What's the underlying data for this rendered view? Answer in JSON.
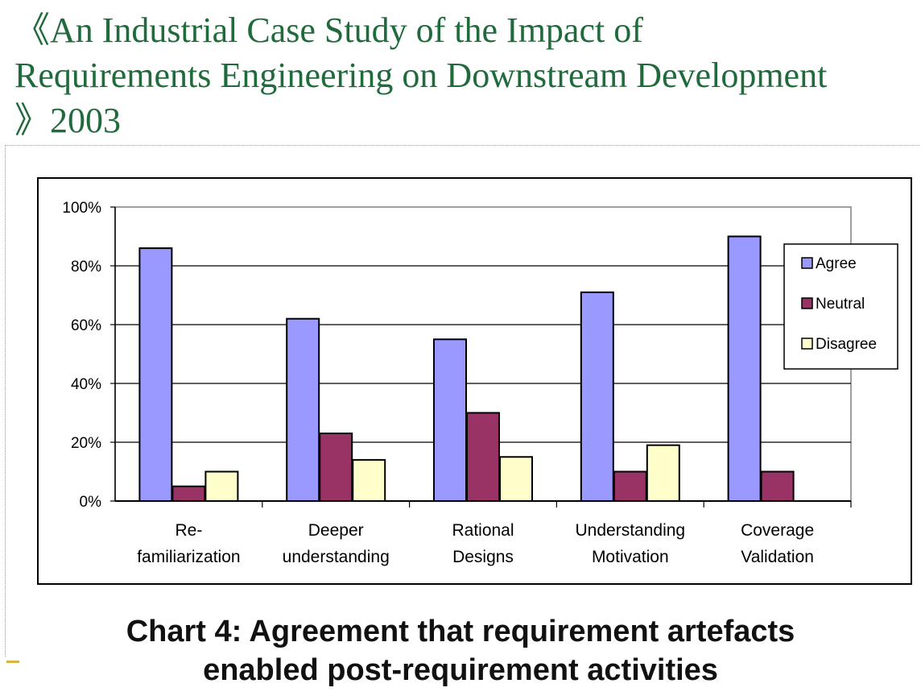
{
  "slide": {
    "title_lines": [
      "《An Industrial Case Study of the Impact of",
      "Requirements Engineering on Downstream Development",
      "》2003"
    ]
  },
  "chart_data": {
    "type": "bar",
    "title": "",
    "xlabel": "",
    "ylabel": "",
    "ylim": [
      0,
      100
    ],
    "y_ticks": [
      "0%",
      "20%",
      "40%",
      "60%",
      "80%",
      "100%"
    ],
    "grid": true,
    "legend_position": "right",
    "categories": [
      [
        "Re-",
        "familiarization"
      ],
      [
        "Deeper",
        "understanding"
      ],
      [
        "Rational",
        "Designs"
      ],
      [
        "Understanding",
        "Motivation"
      ],
      [
        "Coverage",
        "Validation"
      ]
    ],
    "series": [
      {
        "name": "Agree",
        "color": "#9999ff",
        "values": [
          86,
          62,
          55,
          71,
          90
        ]
      },
      {
        "name": "Neutral",
        "color": "#993366",
        "values": [
          5,
          23,
          30,
          10,
          10
        ]
      },
      {
        "name": "Disagree",
        "color": "#ffffcc",
        "values": [
          10,
          14,
          15,
          19,
          0
        ]
      }
    ]
  },
  "caption": {
    "lines": [
      "Chart 4: Agreement that requirement artefacts",
      "enabled post-requirement activities"
    ]
  }
}
